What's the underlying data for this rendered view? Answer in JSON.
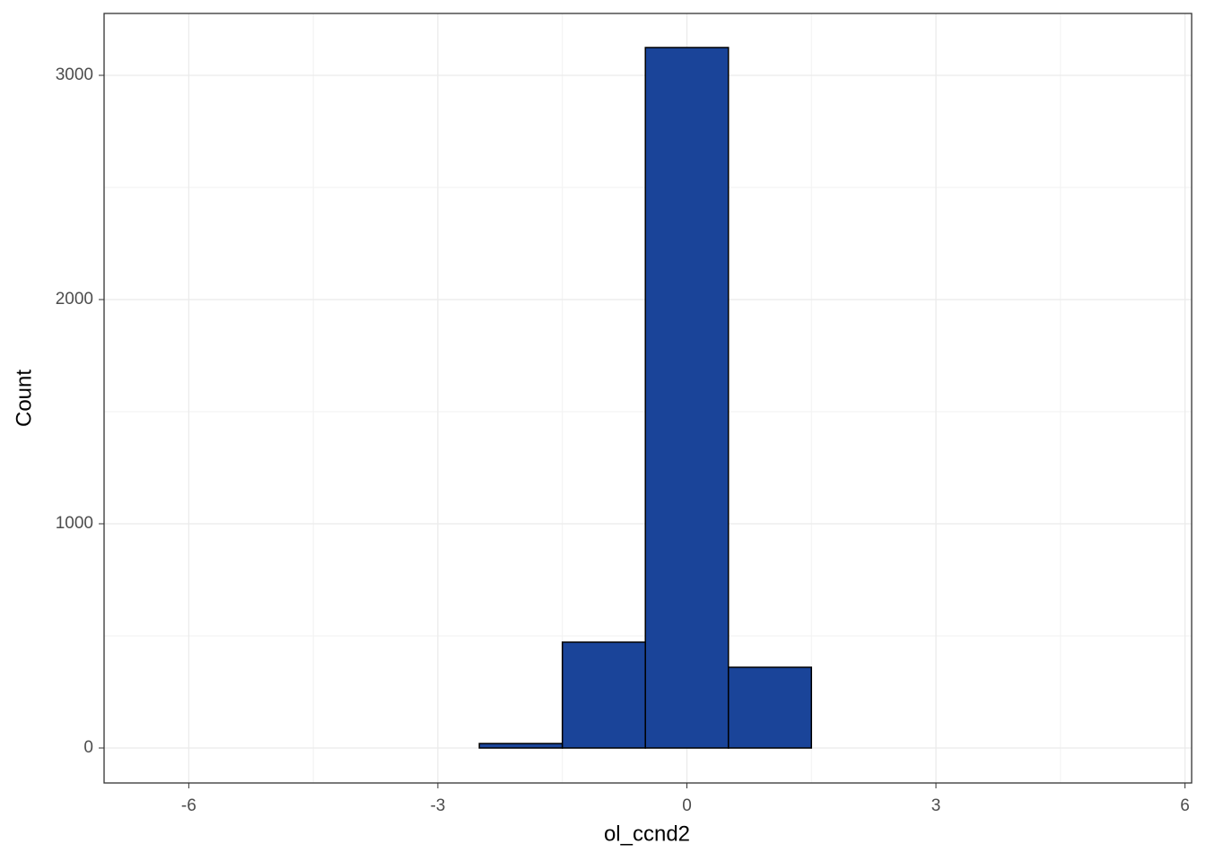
{
  "chart_data": {
    "type": "histogram",
    "x_label": "ol_ccnd2",
    "y_label": "Count",
    "bins": [
      -6.5,
      -5.5,
      -4.5,
      -3.5,
      -2.5,
      -1.5,
      -0.5,
      0.5,
      1.5,
      2.5,
      3.5,
      4.5,
      5.5
    ],
    "values": [
      0,
      0,
      0,
      0,
      20,
      472,
      3124,
      360,
      0,
      0,
      0,
      0
    ],
    "color": "#1a4499",
    "xlim": [
      -7.02,
      6.08
    ],
    "xticks": [
      -6,
      -3,
      0,
      3,
      6
    ],
    "ylim": [
      -156,
      3276
    ],
    "yticks": [
      0,
      1000,
      2000,
      3000
    ],
    "grid": true
  }
}
